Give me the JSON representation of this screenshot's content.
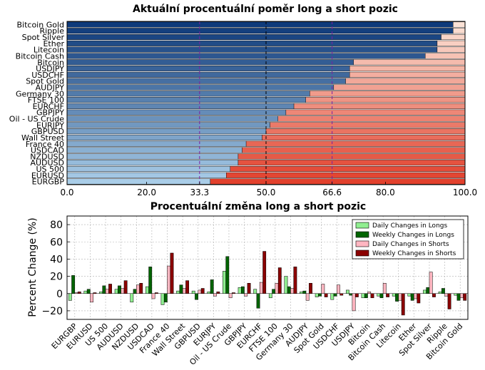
{
  "chart_data": [
    {
      "type": "bar",
      "orientation": "horizontal",
      "stacked": true,
      "title": "Aktuální procentuální poměr long a short pozic",
      "xlim": [
        0,
        100
      ],
      "xticks": [
        "0.0",
        "20.0",
        "33.3",
        "50.0",
        "66.6",
        "80.0",
        "100.0"
      ],
      "reference_lines": [
        33.3,
        50.0,
        66.6
      ],
      "categories": [
        "Bitcoin Gold",
        "Ripple",
        "Spot Silver",
        "Ether",
        "Litecoin",
        "Bitcoin Cash",
        "Bitcoin",
        "USDJPY",
        "USDCHF",
        "Spot Gold",
        "AUDJPY",
        "Germany 30",
        "FTSE 100",
        "EURCHF",
        "GBPJPY",
        "Oil - US Crude",
        "EURJPY",
        "GBPUSD",
        "Wall Street",
        "France 40",
        "USDCAD",
        "NZDUSD",
        "AUDUSD",
        "US 500",
        "EURUSD",
        "EURGBP"
      ],
      "series": [
        {
          "values": [
            97,
            97,
            94,
            93,
            93,
            90,
            72,
            71,
            71,
            70,
            67,
            61,
            60,
            57,
            55,
            53,
            51,
            50,
            49,
            45,
            44,
            43,
            43,
            41,
            40,
            36
          ]
        },
        {
          "values": [
            3,
            3,
            6,
            7,
            7,
            10,
            28,
            29,
            29,
            30,
            33,
            39,
            40,
            43,
            45,
            47,
            49,
            50,
            51,
            55,
            56,
            57,
            57,
            59,
            60,
            64
          ]
        }
      ],
      "colors": {
        "long": "#1f5aa0",
        "short": "#e24a33"
      }
    },
    {
      "type": "bar",
      "title": "Procentuální změna long a short pozic",
      "ylabel": "Percent Change (%)",
      "ylim": [
        -30,
        90
      ],
      "yticks": [
        "−20",
        "0",
        "20",
        "40",
        "60",
        "80"
      ],
      "categories": [
        "EURGBP",
        "EURUSD",
        "US 500",
        "AUDUSD",
        "NZDUSD",
        "USDCAD",
        "France 40",
        "Wall Street",
        "GBPUSD",
        "EURJPY",
        "Oil - US Crude",
        "GBPJPY",
        "EURCHF",
        "FTSE 100",
        "Germany 30",
        "AUDJPY",
        "Spot Gold",
        "USDCHF",
        "USDJPY",
        "Bitcoin",
        "Bitcoin Cash",
        "Litecoin",
        "Ether",
        "Spot Silver",
        "Ripple",
        "Bitcoin Gold"
      ],
      "series": [
        {
          "name": "Daily Changes in Longs",
          "color": "#90ee90",
          "values": [
            -8,
            3,
            2,
            5,
            -10,
            8,
            -13,
            3,
            3,
            2,
            26,
            7,
            5,
            -5,
            20,
            2,
            -4,
            -7,
            4,
            -5,
            -3,
            -3,
            -3,
            4,
            2,
            -2
          ]
        },
        {
          "name": "Weekly Changes in Longs",
          "color": "#006400",
          "values": [
            21,
            5,
            9,
            9,
            5,
            31,
            -10,
            10,
            -7,
            16,
            43,
            8,
            -17,
            5,
            8,
            3,
            -3,
            -3,
            -2,
            -5,
            -5,
            -9,
            -8,
            7,
            6,
            -8
          ]
        },
        {
          "name": "Daily Changes in Shorts",
          "color": "#ffb6c1",
          "values": [
            1,
            -10,
            5,
            6,
            10,
            -6,
            32,
            6,
            4,
            -3,
            -5,
            -3,
            13,
            12,
            6,
            -8,
            11,
            10,
            -20,
            2,
            12,
            -8,
            -6,
            25,
            -3,
            -5
          ]
        },
        {
          "name": "Weekly Changes in Shorts",
          "color": "#8b0000",
          "values": [
            2,
            1,
            11,
            15,
            12,
            1,
            47,
            15,
            6,
            2,
            1,
            12,
            49,
            30,
            31,
            12,
            -4,
            -2,
            -4,
            -5,
            -4,
            -25,
            -11,
            -4,
            -18,
            -8
          ]
        }
      ],
      "legend": "top-right",
      "grid": true
    }
  ]
}
